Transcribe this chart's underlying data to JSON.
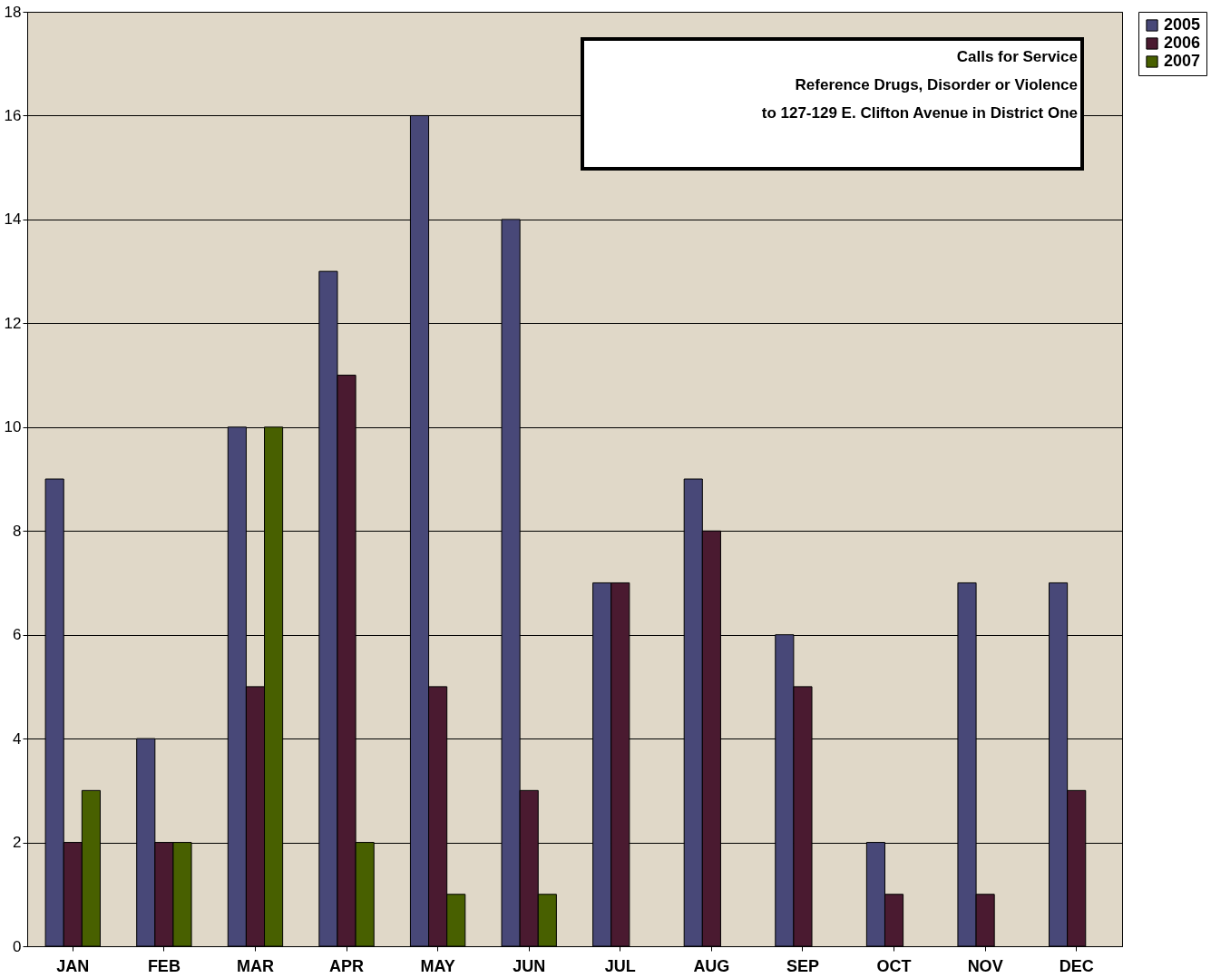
{
  "chart_data": {
    "type": "bar",
    "title": "Calls for Service",
    "subtitle": "Reference Drugs, Disorder or Violence\nto 127-129 E. Clifton Avenue in District One",
    "categories": [
      "JAN",
      "FEB",
      "MAR",
      "APR",
      "MAY",
      "JUN",
      "JUL",
      "AUG",
      "SEP",
      "OCT",
      "NOV",
      "DEC"
    ],
    "series": [
      {
        "name": "2005",
        "color": "#484878",
        "values": [
          9,
          4,
          10,
          13,
          16,
          14,
          7,
          9,
          6,
          2,
          7,
          7
        ]
      },
      {
        "name": "2006",
        "color": "#4a1a30",
        "values": [
          2,
          2,
          5,
          11,
          5,
          3,
          7,
          8,
          5,
          1,
          1,
          3
        ]
      },
      {
        "name": "2007",
        "color": "#486000",
        "values": [
          3,
          2,
          10,
          2,
          1,
          1,
          null,
          null,
          null,
          null,
          null,
          null
        ]
      }
    ],
    "ylim": [
      0,
      18
    ],
    "yticks": [
      0,
      2,
      4,
      6,
      8,
      10,
      12,
      14,
      16,
      18
    ],
    "grid": "y",
    "legend": "right"
  }
}
